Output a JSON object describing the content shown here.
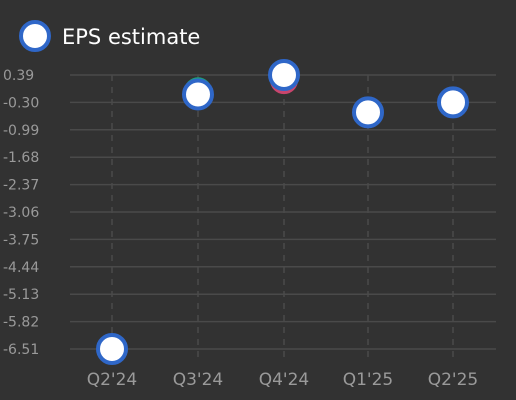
{
  "chart_data": {
    "type": "scatter",
    "categories": [
      "Q2'24",
      "Q3'24",
      "Q4'24",
      "Q1'25",
      "Q2'25"
    ],
    "y_ticks": [
      0.39,
      -0.3,
      -0.99,
      -1.68,
      -2.37,
      -3.06,
      -3.75,
      -4.44,
      -5.13,
      -5.82,
      -6.51
    ],
    "y_tick_labels": [
      "0.39",
      "-0.30",
      "-0.99",
      "-1.68",
      "-2.37",
      "-3.06",
      "-3.75",
      "-4.44",
      "-5.13",
      "-5.82",
      "-6.51"
    ],
    "ylim": [
      -6.51,
      0.39
    ],
    "series": [
      {
        "name": "EPS estimate",
        "values": [
          -6.51,
          -0.1,
          0.39,
          -0.55,
          -0.3
        ],
        "marker_fill": "#ffffff",
        "marker_stroke": "#2f67c8"
      }
    ],
    "actual_hints": [
      {
        "category_index": 1,
        "value": -0.02,
        "color": "#1aa37a"
      },
      {
        "category_index": 2,
        "value": 0.26,
        "color": "#c9456c"
      }
    ],
    "legend": {
      "position": "top-left",
      "label": "EPS estimate"
    },
    "grid": {
      "horizontal": true,
      "vertical_dashed": true
    },
    "colors": {
      "background": "#323232",
      "grid": "#4a4a4a",
      "tick_text": "#9a9a9a",
      "legend_text": "#ffffff"
    }
  }
}
